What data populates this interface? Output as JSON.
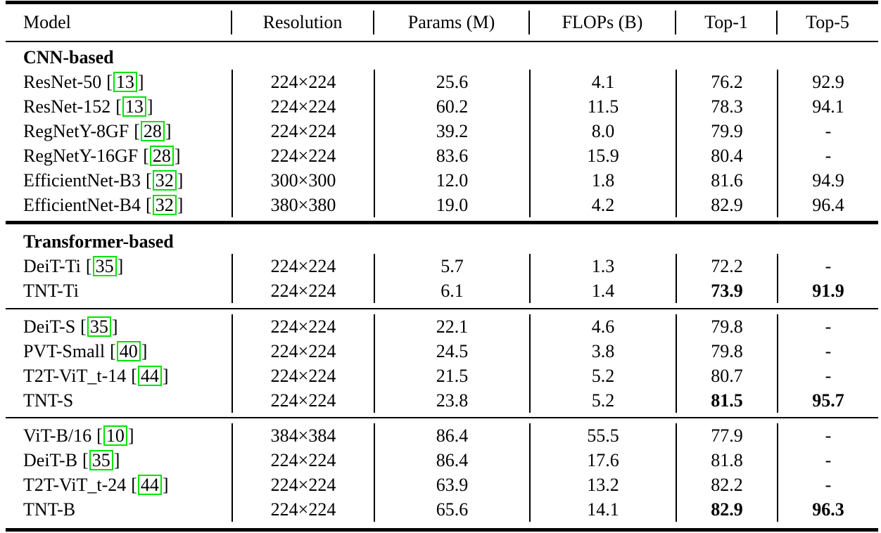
{
  "table": {
    "link_box_color": "#00e400",
    "text_color": "#000000",
    "cite_brackets": [
      "[",
      "]"
    ],
    "columns": [
      {
        "label": "Model"
      },
      {
        "label": "Resolution"
      },
      {
        "label": "Params (M)"
      },
      {
        "label": "FLOPs (B)"
      },
      {
        "label": "Top-1"
      },
      {
        "label": "Top-5"
      }
    ],
    "groups": [
      {
        "title": "CNN-based",
        "rows": [
          {
            "model": "ResNet-50",
            "cite": "13",
            "resolution": "224×224",
            "params": "25.6",
            "flops": "4.1",
            "top1": "76.2",
            "top5": "92.9",
            "emph": false
          },
          {
            "model": "ResNet-152",
            "cite": "13",
            "resolution": "224×224",
            "params": "60.2",
            "flops": "11.5",
            "top1": "78.3",
            "top5": "94.1",
            "emph": false
          },
          {
            "model": "RegNetY-8GF",
            "cite": "28",
            "resolution": "224×224",
            "params": "39.2",
            "flops": "8.0",
            "top1": "79.9",
            "top5": "-",
            "emph": false
          },
          {
            "model": "RegNetY-16GF",
            "cite": "28",
            "resolution": "224×224",
            "params": "83.6",
            "flops": "15.9",
            "top1": "80.4",
            "top5": "-",
            "emph": false
          },
          {
            "model": "EfficientNet-B3",
            "cite": "32",
            "resolution": "300×300",
            "params": "12.0",
            "flops": "1.8",
            "top1": "81.6",
            "top5": "94.9",
            "emph": false
          },
          {
            "model": "EfficientNet-B4",
            "cite": "32",
            "resolution": "380×380",
            "params": "19.0",
            "flops": "4.2",
            "top1": "82.9",
            "top5": "96.4",
            "emph": false
          }
        ]
      },
      {
        "title": "Transformer-based",
        "rows": [
          {
            "model": "DeiT-Ti",
            "cite": "35",
            "resolution": "224×224",
            "params": "5.7",
            "flops": "1.3",
            "top1": "72.2",
            "top5": "-",
            "emph": false
          },
          {
            "model": "TNT-Ti",
            "cite": null,
            "resolution": "224×224",
            "params": "6.1",
            "flops": "1.4",
            "top1": "73.9",
            "top5": "91.9",
            "emph": true
          }
        ]
      },
      {
        "title": null,
        "rows": [
          {
            "model": "DeiT-S",
            "cite": "35",
            "resolution": "224×224",
            "params": "22.1",
            "flops": "4.6",
            "top1": "79.8",
            "top5": "-",
            "emph": false
          },
          {
            "model": "PVT-Small",
            "cite": "40",
            "resolution": "224×224",
            "params": "24.5",
            "flops": "3.8",
            "top1": "79.8",
            "top5": "-",
            "emph": false
          },
          {
            "model": "T2T-ViT_t-14",
            "cite": "44",
            "resolution": "224×224",
            "params": "21.5",
            "flops": "5.2",
            "top1": "80.7",
            "top5": "-",
            "emph": false
          },
          {
            "model": "TNT-S",
            "cite": null,
            "resolution": "224×224",
            "params": "23.8",
            "flops": "5.2",
            "top1": "81.5",
            "top5": "95.7",
            "emph": true
          }
        ]
      },
      {
        "title": null,
        "rows": [
          {
            "model": "ViT-B/16",
            "cite": "10",
            "resolution": "384×384",
            "params": "86.4",
            "flops": "55.5",
            "top1": "77.9",
            "top5": "-",
            "emph": false
          },
          {
            "model": "DeiT-B",
            "cite": "35",
            "resolution": "224×224",
            "params": "86.4",
            "flops": "17.6",
            "top1": "81.8",
            "top5": "-",
            "emph": false
          },
          {
            "model": "T2T-ViT_t-24",
            "cite": "44",
            "resolution": "224×224",
            "params": "63.9",
            "flops": "13.2",
            "top1": "82.2",
            "top5": "-",
            "emph": false
          },
          {
            "model": "TNT-B",
            "cite": null,
            "resolution": "224×224",
            "params": "65.6",
            "flops": "14.1",
            "top1": "82.9",
            "top5": "96.3",
            "emph": true
          }
        ]
      }
    ]
  }
}
